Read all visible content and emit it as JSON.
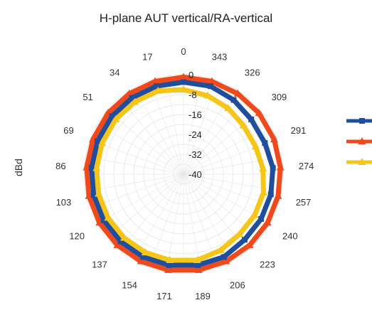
{
  "chart_data": {
    "type": "line",
    "subtype": "polar",
    "title": "H-plane AUT vertical/RA-vertical",
    "ylabel": "dBd",
    "angles": [
      "0",
      "17",
      "34",
      "51",
      "69",
      "86",
      "103",
      "120",
      "137",
      "154",
      "171",
      "189",
      "206",
      "223",
      "240",
      "257",
      "274",
      "291",
      "309",
      "326",
      "343"
    ],
    "angle_values": [
      0,
      17,
      34,
      51,
      69,
      86,
      103,
      120,
      137,
      154,
      171,
      189,
      206,
      223,
      240,
      257,
      274,
      291,
      309,
      326,
      343
    ],
    "radial_ticks": [
      "0",
      "-8",
      "-16",
      "-24",
      "-32",
      "-40"
    ],
    "rlim": [
      -40,
      0
    ],
    "grid": true,
    "legend": "right",
    "series": [
      {
        "color": "#1f4e9c",
        "marker": "square",
        "values": [
          -3,
          -3,
          -3,
          -3,
          -3,
          -3,
          -3,
          -3,
          -3,
          -3,
          -3,
          -3,
          -3,
          -4,
          -4,
          -4,
          -4,
          -5,
          -5,
          -4,
          -3
        ]
      },
      {
        "color": "#f04a1c",
        "marker": "triangle",
        "values": [
          -1,
          -1,
          -1,
          -1,
          -1,
          -1,
          -1,
          -1,
          -1,
          -1,
          -1,
          -1,
          -1,
          -1,
          -1,
          -1,
          -1,
          -1,
          -1,
          -1,
          -1
        ]
      },
      {
        "color": "#f5c518",
        "marker": "triangle",
        "values": [
          -6,
          -5,
          -5,
          -5,
          -5,
          -5,
          -5,
          -5,
          -5,
          -5,
          -5,
          -5,
          -6,
          -7,
          -7,
          -7,
          -8,
          -9,
          -9,
          -8,
          -7
        ]
      }
    ]
  }
}
